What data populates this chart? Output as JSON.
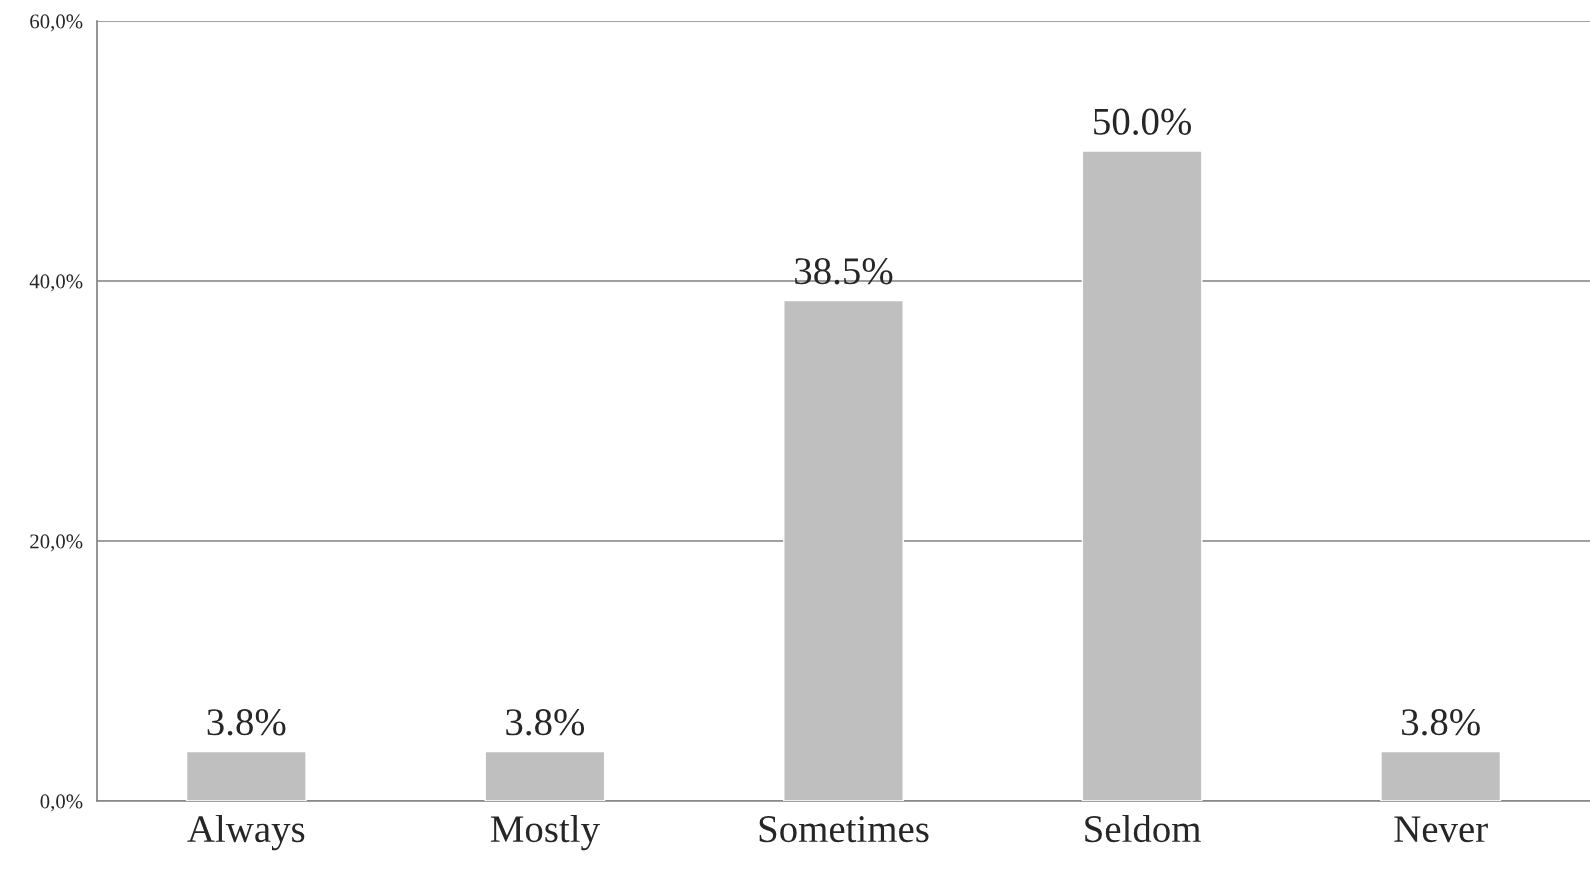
{
  "chart_data": {
    "type": "bar",
    "categories": [
      "Always",
      "Mostly",
      "Sometimes",
      "Seldom",
      "Never"
    ],
    "values": [
      3.8,
      3.8,
      38.5,
      50.0,
      3.8
    ],
    "value_labels": [
      "3.8%",
      "3.8%",
      "38.5%",
      "50.0%",
      "3.8%"
    ],
    "color": "#bfbfbf",
    "ylim": [
      0,
      60
    ],
    "yticks": [
      {
        "value": 0,
        "label": "0,0%"
      },
      {
        "value": 20,
        "label": "20,0%"
      },
      {
        "value": 40,
        "label": "40,0%"
      },
      {
        "value": 60,
        "label": "60,0%"
      }
    ],
    "grid": "y",
    "legend": false
  }
}
